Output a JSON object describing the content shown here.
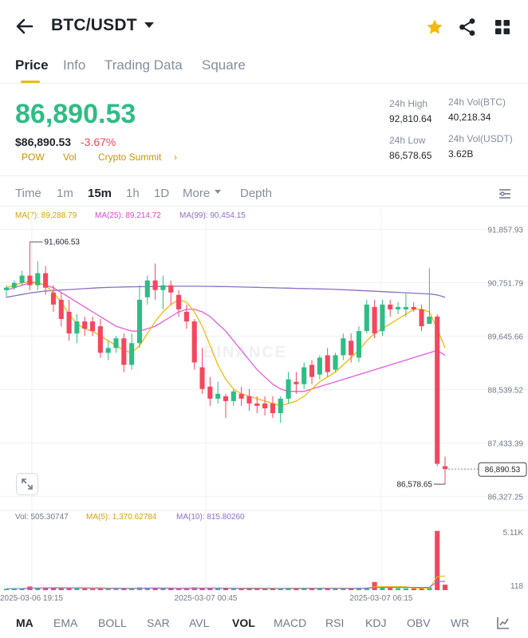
{
  "header": {
    "pair": "BTC/USDT",
    "icons": [
      "back-arrow-icon",
      "caret-down-icon",
      "star-icon",
      "share-icon",
      "grid-icon"
    ],
    "star_color": "#f0b90b"
  },
  "tabs": [
    "Price",
    "Info",
    "Trading Data",
    "Square"
  ],
  "price": {
    "last": "86,890.53",
    "usd": "$86,890.53",
    "change": "-3.67%",
    "tags": [
      "POW",
      "Vol",
      "Crypto Summit"
    ],
    "up_color": "#2ebd85",
    "down_color": "#f6465d"
  },
  "stats": {
    "high_label": "24h High",
    "high": "92,810.64",
    "low_label": "24h Low",
    "low": "86,578.65",
    "vol_btc_label": "24h Vol(BTC)",
    "vol_btc": "40,218.34",
    "vol_usdt_label": "24h Vol(USDT)",
    "vol_usdt": "3.62B"
  },
  "timeframes": {
    "items": [
      "Time",
      "1m",
      "15m",
      "1h",
      "1D",
      "More",
      "Depth"
    ],
    "active": "15m"
  },
  "ma_legend": {
    "ma7": "MA(7): 89,288.79",
    "ma25": "MA(25): 89,214.72",
    "ma99": "MA(99): 90,454.15",
    "colors": {
      "ma7": "#f0b90b",
      "ma25": "#e45ce0",
      "ma99": "#8c6fc7"
    }
  },
  "chart_data": {
    "type": "candlestick",
    "y_ticks": [
      "91,857.93",
      "90,751.79",
      "89,645.66",
      "88,539.52",
      "87,433.39",
      "86,327.25"
    ],
    "ylim": [
      86150,
      92050
    ],
    "x_ticks": [
      "2025-03-06 19:15",
      "2025-03-07 00:45",
      "2025-03-07 06:15"
    ],
    "high_annotation": "91,606.53",
    "low_annotation": "86,578.65",
    "last_price_label": "86,890.53",
    "watermark": "BINANCE",
    "candles": [
      {
        "o": 90600,
        "h": 90700,
        "c": 90650,
        "l": 90450
      },
      {
        "o": 90650,
        "h": 90800,
        "c": 90750,
        "l": 90600
      },
      {
        "o": 90750,
        "h": 91000,
        "c": 90900,
        "l": 90700
      },
      {
        "o": 90900,
        "h": 91600,
        "c": 90700,
        "l": 90600
      },
      {
        "o": 90700,
        "h": 91200,
        "c": 90950,
        "l": 90600
      },
      {
        "o": 90950,
        "h": 91100,
        "c": 90650,
        "l": 90500
      },
      {
        "o": 90550,
        "h": 90700,
        "c": 90300,
        "l": 90150
      },
      {
        "o": 90400,
        "h": 90550,
        "c": 90000,
        "l": 89850
      },
      {
        "o": 90150,
        "h": 90400,
        "c": 89700,
        "l": 89550
      },
      {
        "o": 89700,
        "h": 90100,
        "c": 89950,
        "l": 89500
      },
      {
        "o": 89950,
        "h": 90050,
        "c": 89800,
        "l": 89650
      },
      {
        "o": 89950,
        "h": 90050,
        "c": 89750,
        "l": 89650
      },
      {
        "o": 89850,
        "h": 90000,
        "c": 89300,
        "l": 89200
      },
      {
        "o": 89300,
        "h": 89550,
        "c": 89400,
        "l": 89150
      },
      {
        "o": 89400,
        "h": 89650,
        "c": 89600,
        "l": 89300
      },
      {
        "o": 89600,
        "h": 89700,
        "c": 89050,
        "l": 88900
      },
      {
        "o": 89050,
        "h": 89700,
        "c": 89500,
        "l": 88950
      },
      {
        "o": 89500,
        "h": 90700,
        "c": 90400,
        "l": 89400
      },
      {
        "o": 90450,
        "h": 90900,
        "c": 90800,
        "l": 90300
      },
      {
        "o": 90800,
        "h": 91150,
        "c": 90600,
        "l": 90400
      },
      {
        "o": 90600,
        "h": 90900,
        "c": 90700,
        "l": 90200
      },
      {
        "o": 90700,
        "h": 90800,
        "c": 90550,
        "l": 90300
      },
      {
        "o": 90500,
        "h": 90600,
        "c": 90200,
        "l": 90050
      },
      {
        "o": 90150,
        "h": 90300,
        "c": 89950,
        "l": 89800
      },
      {
        "o": 89950,
        "h": 90000,
        "c": 89100,
        "l": 88950
      },
      {
        "o": 89000,
        "h": 89400,
        "c": 88550,
        "l": 88450
      },
      {
        "o": 88600,
        "h": 88800,
        "c": 88350,
        "l": 88200
      },
      {
        "o": 88350,
        "h": 88700,
        "c": 88450,
        "l": 88250
      },
      {
        "o": 88400,
        "h": 88450,
        "c": 88300,
        "l": 87950
      },
      {
        "o": 88300,
        "h": 88550,
        "c": 88500,
        "l": 88200
      },
      {
        "o": 88450,
        "h": 88600,
        "c": 88350,
        "l": 88200
      },
      {
        "o": 88400,
        "h": 88550,
        "c": 88250,
        "l": 88100
      },
      {
        "o": 88250,
        "h": 88400,
        "c": 88200,
        "l": 88050
      },
      {
        "o": 88250,
        "h": 88400,
        "c": 88150,
        "l": 88000
      },
      {
        "o": 88250,
        "h": 88400,
        "c": 88050,
        "l": 87950
      },
      {
        "o": 88050,
        "h": 88400,
        "c": 88350,
        "l": 87850
      },
      {
        "o": 88350,
        "h": 88900,
        "c": 88750,
        "l": 88250
      },
      {
        "o": 88700,
        "h": 88900,
        "c": 88650,
        "l": 88450
      },
      {
        "o": 88650,
        "h": 89100,
        "c": 89000,
        "l": 88550
      },
      {
        "o": 89050,
        "h": 89150,
        "c": 88800,
        "l": 88650
      },
      {
        "o": 88850,
        "h": 89250,
        "c": 89200,
        "l": 88750
      },
      {
        "o": 89250,
        "h": 89400,
        "c": 88900,
        "l": 88800
      },
      {
        "o": 88950,
        "h": 89300,
        "c": 89250,
        "l": 88900
      },
      {
        "o": 89250,
        "h": 89700,
        "c": 89600,
        "l": 89150
      },
      {
        "o": 89550,
        "h": 89700,
        "c": 89250,
        "l": 89100
      },
      {
        "o": 89200,
        "h": 89850,
        "c": 89750,
        "l": 89100
      },
      {
        "o": 89750,
        "h": 90400,
        "c": 90300,
        "l": 89700
      },
      {
        "o": 90250,
        "h": 90400,
        "c": 89700,
        "l": 89600
      },
      {
        "o": 89750,
        "h": 90400,
        "c": 90300,
        "l": 89650
      },
      {
        "o": 90300,
        "h": 90400,
        "c": 90200,
        "l": 90050
      },
      {
        "o": 90200,
        "h": 90350,
        "c": 90250,
        "l": 90100
      },
      {
        "o": 90200,
        "h": 90550,
        "c": 90250,
        "l": 90050
      },
      {
        "o": 90250,
        "h": 90350,
        "c": 90200,
        "l": 90150
      },
      {
        "o": 90200,
        "h": 90300,
        "c": 89850,
        "l": 89750
      },
      {
        "o": 89900,
        "h": 91050,
        "c": 90050,
        "l": 89900
      },
      {
        "o": 90050,
        "h": 90100,
        "c": 87000,
        "l": 86950
      },
      {
        "o": 86950,
        "h": 87150,
        "c": 86890,
        "l": 86578
      }
    ],
    "ma7": [
      90650,
      90700,
      90750,
      90780,
      90750,
      90700,
      90550,
      90350,
      90100,
      89900,
      89800,
      89750,
      89650,
      89550,
      89450,
      89350,
      89300,
      89450,
      89700,
      89950,
      90150,
      90300,
      90400,
      90350,
      90150,
      89850,
      89450,
      89050,
      88750,
      88550,
      88450,
      88400,
      88350,
      88300,
      88250,
      88200,
      88250,
      88300,
      88400,
      88550,
      88700,
      88800,
      88900,
      89050,
      89200,
      89350,
      89550,
      89700,
      89800,
      89900,
      90000,
      90100,
      90200,
      90200,
      90150,
      89800,
      89400
    ],
    "ma25": [
      90600,
      90650,
      90700,
      90750,
      90750,
      90700,
      90650,
      90550,
      90450,
      90350,
      90250,
      90150,
      90050,
      89950,
      89850,
      89800,
      89750,
      89750,
      89800,
      89850,
      89950,
      90050,
      90150,
      90200,
      90200,
      90150,
      90050,
      89900,
      89750,
      89550,
      89350,
      89150,
      88950,
      88800,
      88650,
      88550,
      88500,
      88500,
      88500,
      88550,
      88600,
      88650,
      88700,
      88750,
      88800,
      88850,
      88900,
      88950,
      89000,
      89050,
      89100,
      89150,
      89200,
      89250,
      89300,
      89350,
      89250
    ],
    "ma99": [
      90450,
      90480,
      90510,
      90540,
      90560,
      90580,
      90590,
      90600,
      90610,
      90620,
      90630,
      90640,
      90650,
      90655,
      90660,
      90665,
      90668,
      90670,
      90672,
      90674,
      90676,
      90678,
      90680,
      90680,
      90680,
      90678,
      90676,
      90674,
      90672,
      90668,
      90664,
      90660,
      90656,
      90652,
      90648,
      90644,
      90640,
      90636,
      90632,
      90628,
      90624,
      90620,
      90614,
      90608,
      90600,
      90592,
      90584,
      90576,
      90568,
      90560,
      90552,
      90544,
      90536,
      90528,
      90520,
      90500,
      90450
    ],
    "volume": [
      30,
      40,
      35,
      80,
      45,
      60,
      55,
      40,
      50,
      45,
      35,
      30,
      40,
      35,
      30,
      50,
      35,
      60,
      55,
      45,
      40,
      35,
      30,
      40,
      60,
      50,
      45,
      40,
      35,
      30,
      40,
      45,
      35,
      30,
      40,
      35,
      50,
      45,
      40,
      35,
      40,
      45,
      35,
      40,
      45,
      50,
      55,
      180,
      60,
      50,
      45,
      40,
      35,
      45,
      60,
      1300,
      120
    ],
    "volume_ticks": [
      "5.11K",
      "118"
    ],
    "volume_ylim": [
      0,
      1400
    ]
  },
  "vol_legend": {
    "vol": "Vol: 505.30747",
    "ma5": "MA(5): 1,370.62784",
    "ma10": "MA(10): 815.80260"
  },
  "indicators": {
    "items": [
      "MA",
      "EMA",
      "BOLL",
      "SAR",
      "AVL",
      "VOL",
      "MACD",
      "RSI",
      "KDJ",
      "OBV",
      "WR"
    ],
    "active": [
      "MA",
      "VOL"
    ]
  }
}
